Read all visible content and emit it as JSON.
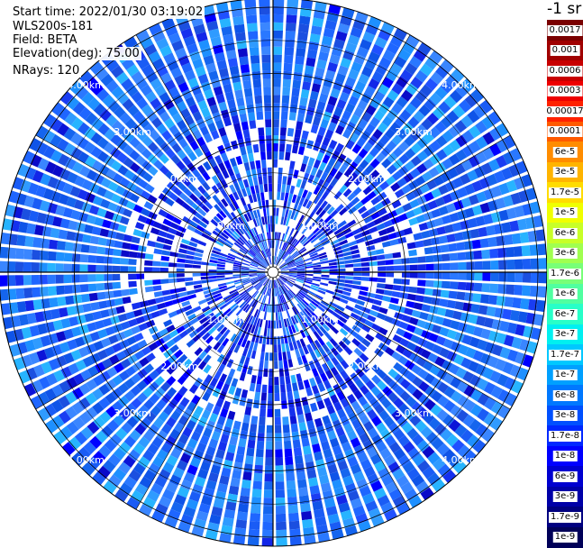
{
  "header": {
    "start_time": "Start time: 2022/01/30 03:19:02",
    "instrument": "WLS200s-181",
    "field": "Field: BETA",
    "elevation": "Elevation(deg): 75.00",
    "nrays": "NRays: 120"
  },
  "colorbar": {
    "unit_label": "-1 sr",
    "labels": [
      "0.0017",
      "0.001",
      "0.0006",
      "0.0003",
      "0.00017",
      "0.0001",
      "6e-5",
      "3e-5",
      "1.7e-5",
      "1e-5",
      "6e-6",
      "3e-6",
      "1.7e-6",
      "1e-6",
      "6e-7",
      "3e-7",
      "1.7e-7",
      "1e-7",
      "6e-8",
      "3e-8",
      "1.7e-8",
      "1e-8",
      "6e-9",
      "3e-9",
      "1.7e-9",
      "1e-9"
    ],
    "colors": [
      "#7a0000",
      "#a00000",
      "#c80000",
      "#ee0000",
      "#ff2200",
      "#ff5a00",
      "#ff8c00",
      "#ffb400",
      "#ffdc00",
      "#f0ff00",
      "#c8ff28",
      "#a0ff50",
      "#78ff78",
      "#50ffa0",
      "#28ffc8",
      "#00f0f0",
      "#00c8ff",
      "#00a0ff",
      "#0078ff",
      "#0050ff",
      "#0028ff",
      "#0000ff",
      "#0000d0",
      "#0000a8",
      "#000080",
      "#000058"
    ]
  },
  "range_rings": {
    "labels": [
      "1.00km",
      "2.00km",
      "3.00km",
      "4.00km"
    ],
    "radii_km": [
      1,
      2,
      3,
      4
    ]
  },
  "nrays": 120
}
